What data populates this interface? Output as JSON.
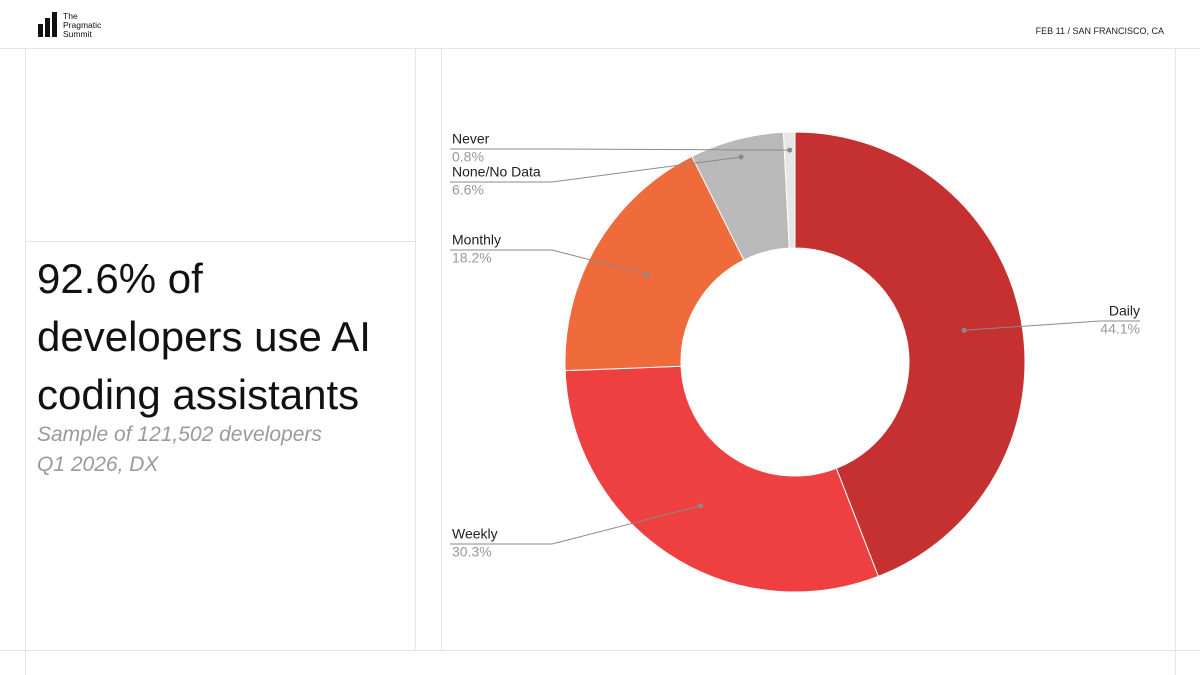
{
  "header": {
    "logo_lines": [
      "The",
      "Pragmatic",
      "Summit"
    ],
    "event": "FEB 11 / SAN FRANCISCO, CA"
  },
  "headline": "92.6% of developers use AI coding assistants",
  "subtitle_lines": [
    "Sample of 121,502 developers",
    "Q1 2026, DX"
  ],
  "chart_data": {
    "type": "pie",
    "categories": [
      "Daily",
      "Weekly",
      "Monthly",
      "None/No Data",
      "Never"
    ],
    "values": [
      44.1,
      30.3,
      18.2,
      6.6,
      0.8
    ],
    "value_labels": [
      "44.1%",
      "30.3%",
      "18.2%",
      "6.6%",
      "0.8%"
    ],
    "colors": [
      "#c53030",
      "#ee4040",
      "#f06b3c",
      "#b9b9b9",
      "#e6e6e6"
    ]
  }
}
